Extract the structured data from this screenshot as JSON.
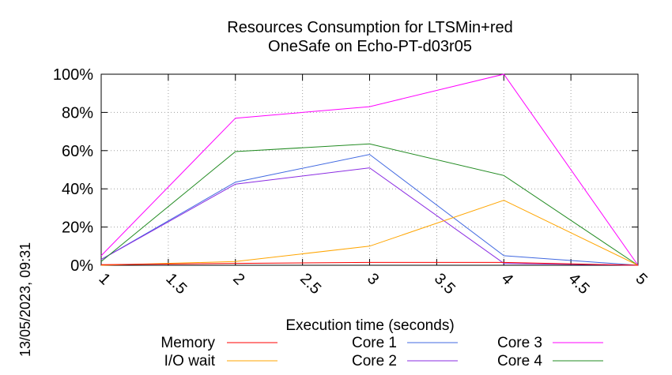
{
  "chart_data": {
    "type": "line",
    "title": [
      "Resources Consumption for LTSMin+red",
      "OneSafe on Echo-PT-d03r05"
    ],
    "xlabel": "Execution time (seconds)",
    "ylabel": "",
    "xlim": [
      1,
      5
    ],
    "ylim": [
      0,
      100
    ],
    "x_ticks": [
      "1",
      "1.5",
      "2",
      "2.5",
      "3",
      "3.5",
      "4",
      "4.5",
      "5"
    ],
    "x_tick_values": [
      1,
      1.5,
      2,
      2.5,
      3,
      3.5,
      4,
      4.5,
      5
    ],
    "y_ticks": [
      "0%",
      "20%",
      "40%",
      "60%",
      "80%",
      "100%"
    ],
    "y_tick_values": [
      0,
      20,
      40,
      60,
      80,
      100
    ],
    "grid": true,
    "legend_position": "bottom",
    "x": [
      1,
      2,
      3,
      4,
      5
    ],
    "series": [
      {
        "name": "Memory",
        "color": "#ff0000",
        "values": [
          0.3,
          1.0,
          1.5,
          1.5,
          0
        ]
      },
      {
        "name": "I/O wait",
        "color": "#ffa500",
        "values": [
          0,
          2,
          10,
          34,
          0
        ]
      },
      {
        "name": "Core 1",
        "color": "#4169e1",
        "values": [
          3,
          43.5,
          58,
          5,
          0
        ]
      },
      {
        "name": "Core 2",
        "color": "#8a2be2",
        "values": [
          3,
          42.5,
          51,
          1,
          0
        ]
      },
      {
        "name": "Core 3",
        "color": "#ff00ff",
        "values": [
          5,
          77,
          83,
          100,
          0
        ]
      },
      {
        "name": "Core 4",
        "color": "#228b22",
        "values": [
          2,
          59.5,
          63.5,
          47,
          0
        ]
      }
    ],
    "side_label": "13/05/2023, 09:31"
  }
}
